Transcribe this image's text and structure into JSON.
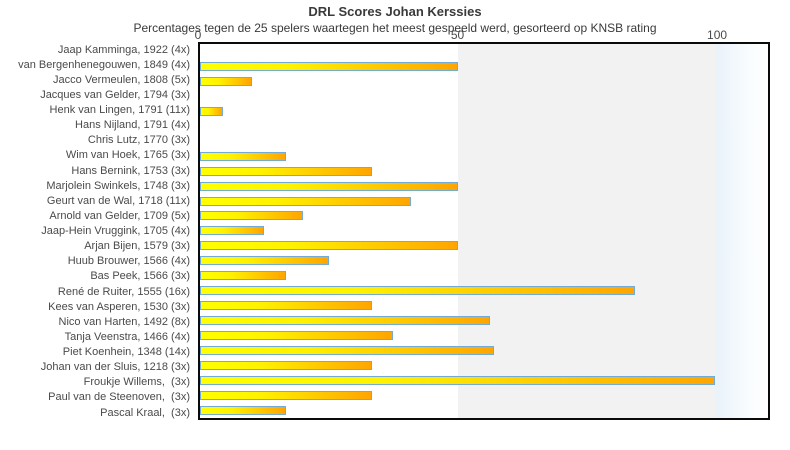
{
  "chart": {
    "title": "DRL Scores Johan Kerssies",
    "subtitle": "Percentages tegen de 25 spelers waartegen het meest gespeeld werd, gesorteerd op KNSB rating"
  },
  "chart_data": {
    "type": "bar",
    "orientation": "horizontal",
    "title": "DRL Scores Johan Kerssies",
    "subtitle": "Percentages tegen de 25 spelers waartegen het meest gespeeld werd, gesorteerd op KNSB rating",
    "xlabel": "",
    "ylabel": "",
    "xlim": [
      0,
      110.2
    ],
    "x_ticks": [
      {
        "value": 0,
        "label": "0"
      },
      {
        "value": 50,
        "label": "50"
      },
      {
        "value": 100,
        "label": "100"
      }
    ],
    "grid": false,
    "legend": "none",
    "background_bands": [
      {
        "from": 0,
        "to": 50,
        "color": "#ffffff"
      },
      {
        "from": 50,
        "to": 100,
        "color": "#f2f2f2"
      },
      {
        "from": 100,
        "to": 110.2,
        "color": "#e9f2fa"
      }
    ],
    "bar_fill_gradient": [
      "#ffff00",
      "#ffa500"
    ],
    "bar_border_color": "#72aad8",
    "categories": [
      "Jaap Kamminga, 1922 (4x)",
      "van Bergenhenegouwen, 1849 (4x)",
      "Jacco Vermeulen, 1808 (5x)",
      "Jacques van Gelder, 1794 (3x)",
      "Henk van Lingen, 1791 (11x)",
      "Hans Nijland, 1791 (4x)",
      "Chris Lutz, 1770 (3x)",
      "Wim van Hoek, 1765 (3x)",
      "Hans Bernink, 1753 (3x)",
      "Marjolein Swinkels, 1748 (3x)",
      "Geurt van de Wal, 1718 (11x)",
      "Arnold van Gelder, 1709 (5x)",
      "Jaap-Hein Vruggink, 1705 (4x)",
      "Arjan Bijen, 1579 (3x)",
      "Huub Brouwer, 1566 (4x)",
      "Bas Peek, 1566 (3x)",
      "René de Ruiter, 1555 (16x)",
      "Kees van Asperen, 1530 (3x)",
      "Nico van Harten, 1492 (8x)",
      "Tanja Veenstra, 1466 (4x)",
      "Piet Koenhein, 1348 (14x)",
      "Johan van der Sluis, 1218 (3x)",
      "Froukje Willems,  (3x)",
      "Paul van de Steenoven,  (3x)",
      "Pascal Kraal,  (3x)"
    ],
    "values": [
      0,
      50,
      10,
      0,
      4.5,
      0,
      0,
      16.7,
      33.3,
      50,
      40.9,
      20,
      12.5,
      50,
      25,
      16.7,
      84.4,
      33.3,
      56.3,
      37.5,
      57.1,
      33.3,
      100,
      33.3,
      16.7
    ]
  }
}
